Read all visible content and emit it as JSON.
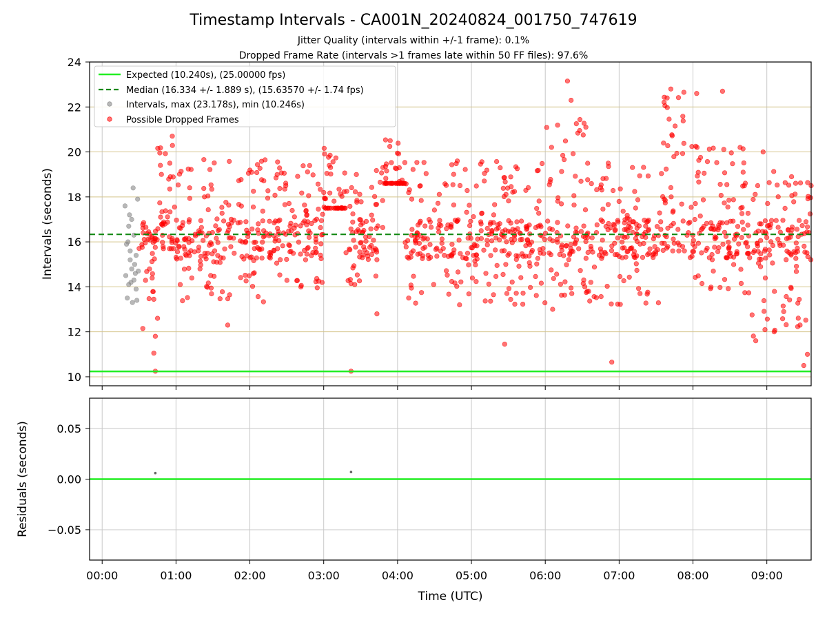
{
  "title": "Timestamp Intervals - CA001N_20240824_001750_747619",
  "subtitle_jitter": "Jitter Quality (intervals within +/-1 frame): 0.1%",
  "subtitle_dropped": "Dropped Frame Rate (intervals >1 frames late within 50 FF files): 97.6%",
  "colors": {
    "expected": "#22ee22",
    "median": "#118811",
    "intervals": "#888888",
    "dropped": "#ff0000",
    "hgrid_top": "#d4c48a",
    "vgrid": "#c8c8c8"
  },
  "chart_data": [
    {
      "type": "scatter",
      "name": "intervals",
      "xlabel": "",
      "ylabel": "Intervals (seconds)",
      "ylim": [
        9.6,
        24.0
      ],
      "yticks": [
        "10",
        "12",
        "14",
        "16",
        "18",
        "20",
        "22",
        "24"
      ],
      "ytick_values": [
        10,
        12,
        14,
        16,
        18,
        20,
        22,
        24
      ],
      "xlim_hours": [
        -0.17,
        9.6
      ],
      "grid": true,
      "legend_position": "top-left",
      "legend": [
        "Expected (10.240s), (25.00000 fps)",
        "Median (16.334 +/- 1.889 s), (15.63570 +/- 1.74 fps)",
        "Intervals, max (23.178s), min (10.246s)",
        "Possible Dropped Frames"
      ],
      "expected_interval": 10.24,
      "median_interval": 16.334,
      "series": [
        {
          "name": "Intervals, max (23.178s), min (10.246s)",
          "points_time_interval": [
            [
              0.31,
              17.6
            ],
            [
              0.33,
              15.9
            ],
            [
              0.32,
              14.5
            ],
            [
              0.34,
              13.5
            ],
            [
              0.36,
              16.7
            ],
            [
              0.37,
              17.2
            ],
            [
              0.38,
              15.6
            ],
            [
              0.39,
              14.2
            ],
            [
              0.4,
              14.8
            ],
            [
              0.41,
              13.3
            ],
            [
              0.42,
              18.4
            ],
            [
              0.43,
              16.3
            ],
            [
              0.44,
              15.0
            ],
            [
              0.45,
              14.6
            ],
            [
              0.46,
              13.9
            ],
            [
              0.47,
              13.4
            ],
            [
              0.48,
              17.9
            ],
            [
              0.49,
              14.7
            ],
            [
              0.35,
              16.0
            ],
            [
              0.36,
              14.1
            ],
            [
              0.38,
              15.2
            ],
            [
              0.4,
              17.0
            ],
            [
              0.43,
              14.3
            ],
            [
              0.46,
              15.4
            ]
          ],
          "summary": {
            "max": 23.178,
            "min": 10.246
          }
        },
        {
          "name": "Possible Dropped Frames",
          "bands": [
            {
              "from": 0.5,
              "to": 0.72,
              "low": 13.4,
              "high": 16.9
            },
            {
              "from": 0.72,
              "to": 1.0,
              "low": 15.7,
              "high": 20.3
            },
            {
              "from": 1.0,
              "to": 2.5,
              "low": 13.3,
              "high": 19.8
            },
            {
              "from": 2.5,
              "to": 3.0,
              "low": 13.8,
              "high": 19.6
            },
            {
              "from": 3.0,
              "to": 3.3,
              "low": 17.5,
              "high": 20.4
            },
            {
              "from": 3.3,
              "to": 3.8,
              "low": 13.9,
              "high": 19.2
            },
            {
              "from": 3.8,
              "to": 4.1,
              "low": 18.6,
              "high": 20.6
            },
            {
              "from": 4.1,
              "to": 6.0,
              "low": 13.2,
              "high": 19.6
            },
            {
              "from": 6.0,
              "to": 6.6,
              "low": 13.5,
              "high": 21.5
            },
            {
              "from": 6.6,
              "to": 7.6,
              "low": 13.2,
              "high": 19.5
            },
            {
              "from": 7.6,
              "to": 7.9,
              "low": 15.6,
              "high": 22.7
            },
            {
              "from": 7.9,
              "to": 8.7,
              "low": 13.6,
              "high": 20.4
            },
            {
              "from": 8.7,
              "to": 9.6,
              "low": 11.8,
              "high": 19.2
            }
          ],
          "outliers": [
            [
              0.72,
              10.25
            ],
            [
              3.37,
              10.25
            ],
            [
              6.9,
              10.65
            ],
            [
              9.5,
              10.5
            ],
            [
              0.7,
              11.05
            ],
            [
              0.72,
              11.8
            ],
            [
              5.45,
              11.45
            ],
            [
              1.7,
              12.3
            ],
            [
              3.72,
              12.8
            ],
            [
              0.55,
              12.15
            ],
            [
              8.85,
              11.6
            ],
            [
              9.1,
              12.0
            ],
            [
              9.55,
              11.0
            ],
            [
              9.45,
              12.3
            ],
            [
              6.3,
              23.15
            ],
            [
              7.7,
              22.8
            ],
            [
              8.4,
              22.7
            ],
            [
              8.05,
              22.6
            ],
            [
              6.35,
              22.3
            ],
            [
              7.65,
              22.4
            ],
            [
              0.95,
              20.7
            ],
            [
              3.9,
              20.5
            ],
            [
              8.95,
              20.0
            ],
            [
              6.55,
              21.1
            ],
            [
              9.6,
              18.5
            ],
            [
              0.75,
              12.6
            ],
            [
              4.15,
              13.5
            ],
            [
              6.1,
              13.0
            ]
          ]
        }
      ]
    },
    {
      "type": "scatter",
      "name": "residuals",
      "xlabel": "Time (UTC)",
      "ylabel": "Residuals (seconds)",
      "ylim": [
        -0.08,
        0.08
      ],
      "yticks": [
        "0.05",
        "0.00",
        "−0.05"
      ],
      "ytick_values": [
        0.05,
        0.0,
        -0.05
      ],
      "xticks": [
        "00:00",
        "01:00",
        "02:00",
        "03:00",
        "04:00",
        "05:00",
        "06:00",
        "07:00",
        "08:00",
        "09:00"
      ],
      "xtick_hours": [
        0,
        1,
        2,
        3,
        4,
        5,
        6,
        7,
        8,
        9
      ],
      "grid": true,
      "zero_line": 0.0,
      "points_time_residual": [
        [
          0.72,
          0.006
        ],
        [
          3.37,
          0.007
        ]
      ]
    }
  ]
}
